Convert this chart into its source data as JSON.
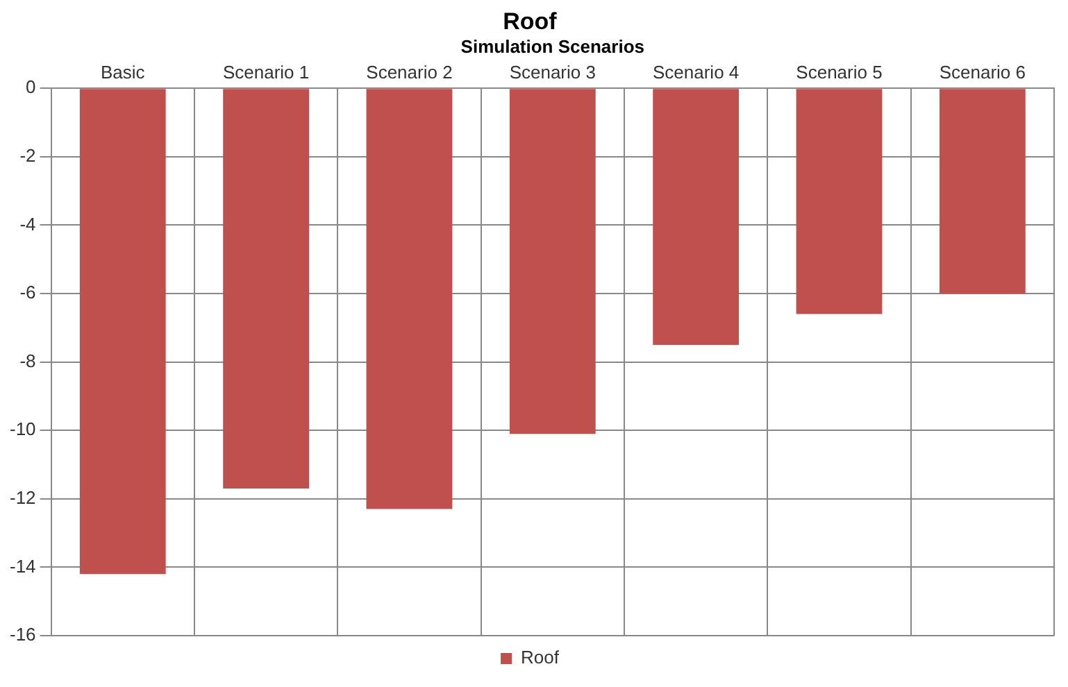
{
  "chart_data": {
    "type": "bar",
    "title": "Roof",
    "xlabel": "Simulation Scenarios",
    "categories": [
      "Basic",
      "Scenario 1",
      "Scenario 2",
      "Scenario 3",
      "Scenario 4",
      "Scenario 5",
      "Scenario 6"
    ],
    "series": [
      {
        "name": "Roof",
        "color": "#c0504d",
        "values": [
          -14.2,
          -11.7,
          -12.3,
          -10.1,
          -7.5,
          -6.6,
          -6.0
        ]
      }
    ],
    "ylim": [
      -16,
      0
    ],
    "yticks": [
      -16,
      -14,
      -12,
      -10,
      -8,
      -6,
      -4,
      -2,
      0
    ],
    "grid": true,
    "legend": "bottom"
  }
}
